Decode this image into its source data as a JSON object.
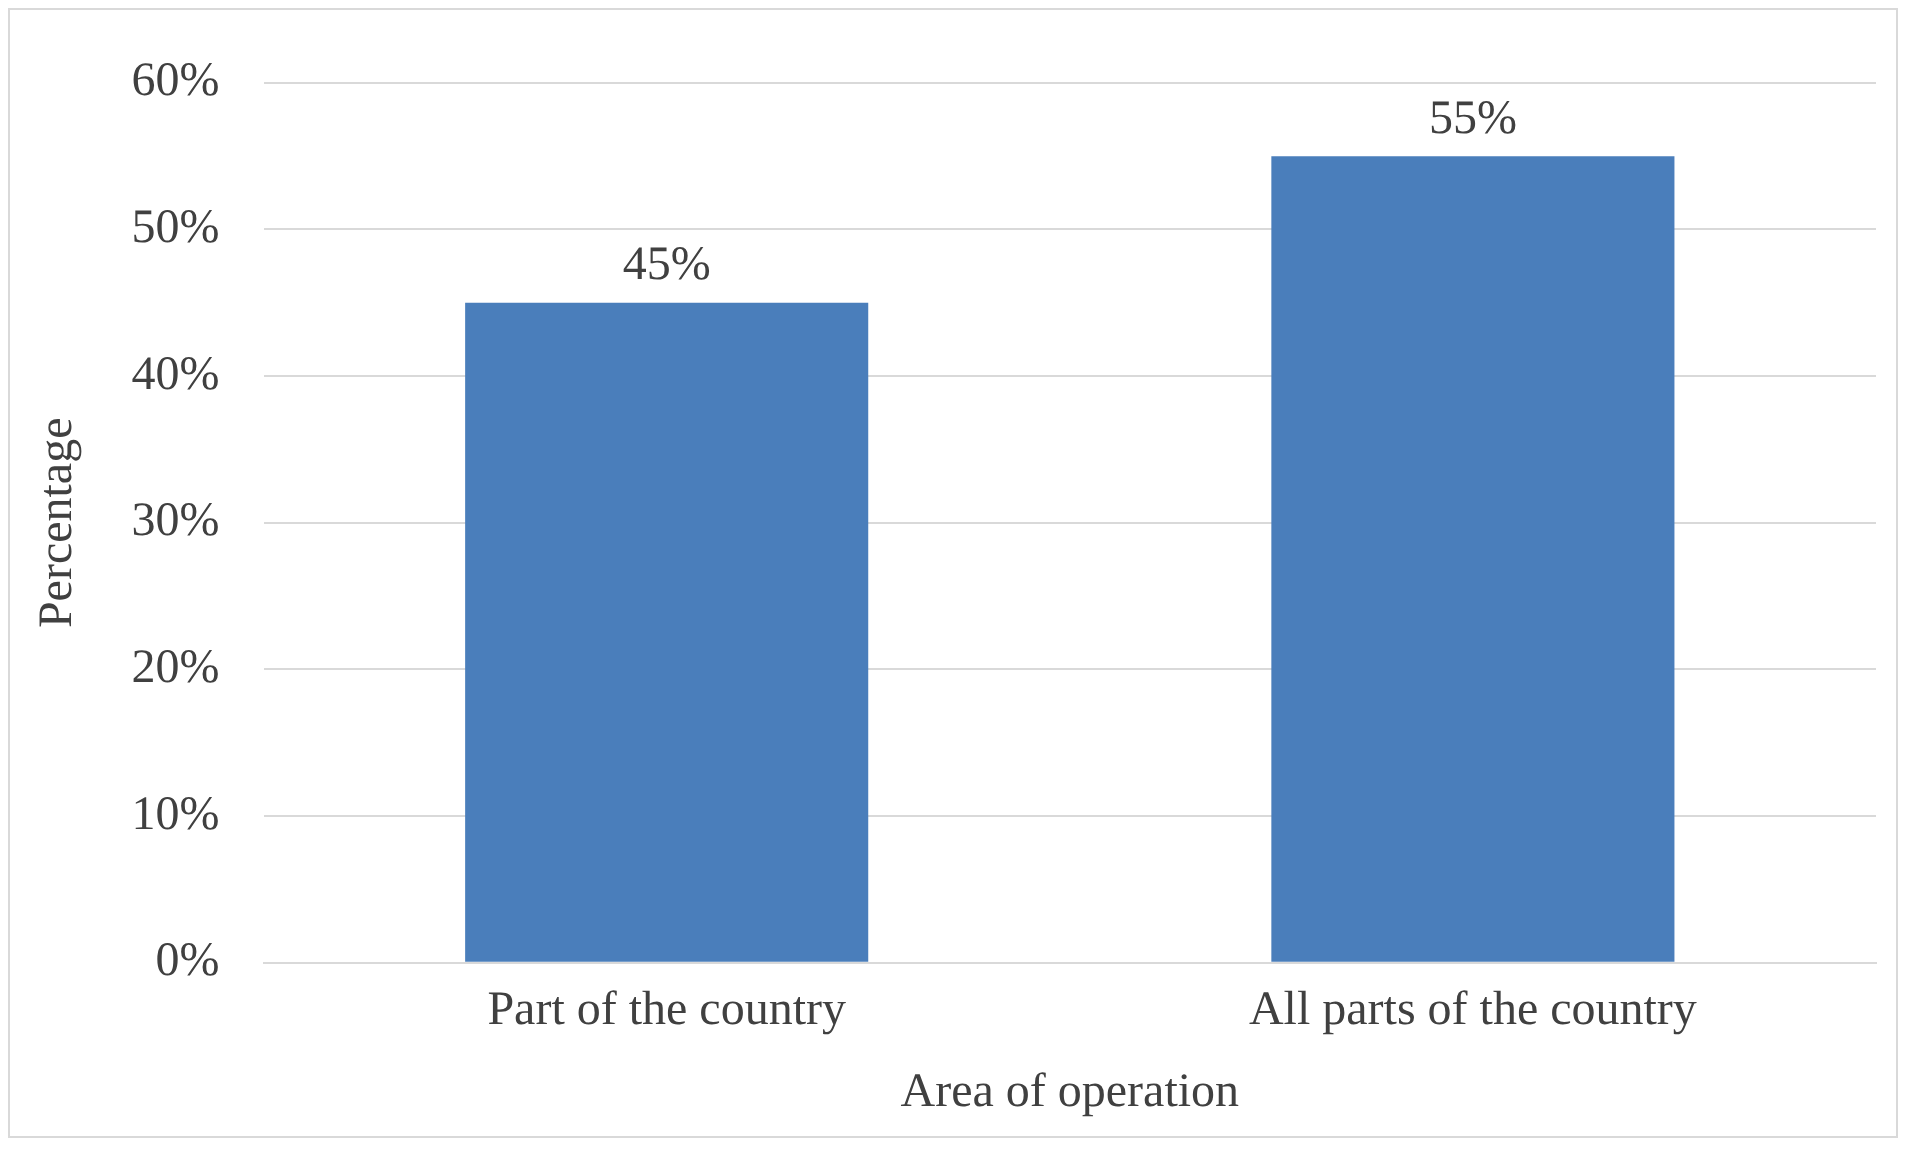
{
  "chart_data": {
    "type": "bar",
    "xlabel": "Area of operation",
    "ylabel": "Percentage",
    "categories": [
      "Part of the country",
      "All parts of the country"
    ],
    "values": [
      45,
      55
    ],
    "color": "#4a7ebb",
    "value_labels": [
      "45%",
      "55%"
    ],
    "ylim": [
      0,
      60
    ],
    "yticks": [
      {
        "value": 0,
        "label": "0%"
      },
      {
        "value": 10,
        "label": "10%"
      },
      {
        "value": 20,
        "label": "20%"
      },
      {
        "value": 30,
        "label": "30%"
      },
      {
        "value": 40,
        "label": "40%"
      },
      {
        "value": 50,
        "label": "50%"
      },
      {
        "value": 60,
        "label": "60%"
      }
    ],
    "grid": "y",
    "legend": false
  }
}
